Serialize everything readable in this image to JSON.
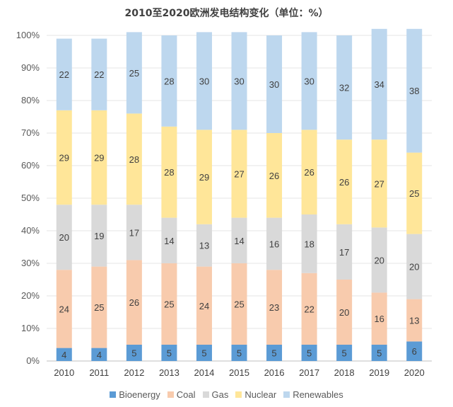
{
  "title": "2010至2020欧洲发电结构变化（单位：%）",
  "chart_data": {
    "type": "bar",
    "stacked": true,
    "title": "2010至2020欧洲发电结构变化（单位：%）",
    "categories": [
      "2010",
      "2011",
      "2012",
      "2013",
      "2014",
      "2015",
      "2016",
      "2017",
      "2018",
      "2019",
      "2020"
    ],
    "ylim": [
      0,
      100
    ],
    "yticks": [
      "0%",
      "10%",
      "20%",
      "30%",
      "40%",
      "50%",
      "60%",
      "70%",
      "80%",
      "90%",
      "100%"
    ],
    "grid": true,
    "legend": "bottom",
    "series": [
      {
        "name": "Bioenergy",
        "color": "#5b9bd5",
        "values": [
          4,
          4,
          5,
          5,
          5,
          5,
          5,
          5,
          5,
          5,
          6
        ]
      },
      {
        "name": "Coal",
        "color": "#f8cbad",
        "values": [
          24,
          25,
          26,
          25,
          24,
          25,
          23,
          22,
          20,
          16,
          13
        ]
      },
      {
        "name": "Gas",
        "color": "#d9d9d9",
        "values": [
          20,
          19,
          17,
          14,
          13,
          14,
          16,
          18,
          17,
          20,
          20
        ]
      },
      {
        "name": "Nuclear",
        "color": "#ffe699",
        "values": [
          29,
          29,
          28,
          28,
          29,
          27,
          26,
          26,
          26,
          27,
          25
        ]
      },
      {
        "name": "Renewables",
        "color": "#bdd7ee",
        "values": [
          22,
          22,
          25,
          28,
          30,
          30,
          30,
          30,
          32,
          34,
          38
        ]
      }
    ]
  }
}
